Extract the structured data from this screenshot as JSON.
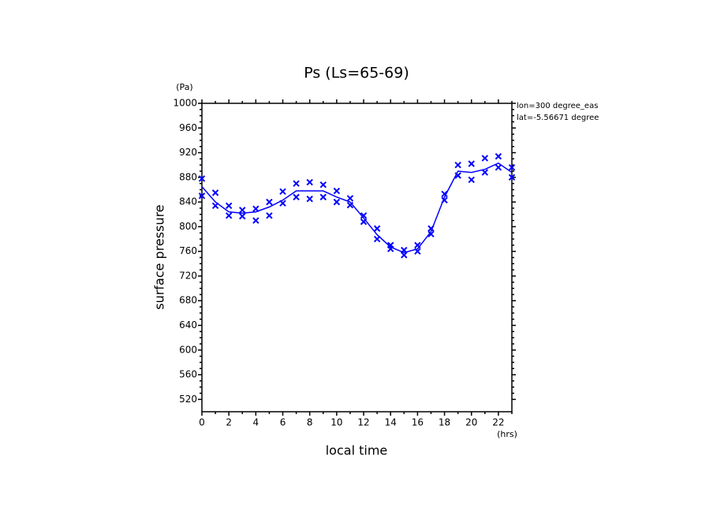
{
  "chart_data": {
    "type": "line",
    "title": "Ps (Ls=65-69)",
    "y_unit": "(Pa)",
    "x_unit": "(hrs)",
    "y_label": "surface pressure",
    "x_label": "local time",
    "annotations": [
      "lon=300 degree_eas",
      "lat=-5.56671 degree"
    ],
    "color": "#0000ff",
    "xlim": [
      0,
      23
    ],
    "xticks": [
      0,
      2,
      4,
      6,
      8,
      10,
      12,
      14,
      16,
      18,
      20,
      22
    ],
    "ylim": [
      500,
      1000
    ],
    "yticks": [
      520,
      560,
      600,
      640,
      680,
      720,
      760,
      800,
      840,
      880,
      920,
      960,
      1000
    ],
    "x": [
      0,
      1,
      2,
      3,
      4,
      5,
      6,
      7,
      8,
      9,
      10,
      11,
      12,
      13,
      14,
      15,
      16,
      17,
      18,
      19,
      20,
      21,
      22,
      23
    ],
    "values": [
      865,
      840,
      824,
      822,
      824,
      832,
      843,
      858,
      858,
      858,
      848,
      840,
      814,
      787,
      767,
      758,
      764,
      792,
      848,
      890,
      888,
      893,
      903,
      888
    ],
    "samples": {
      "x": [
        0,
        0,
        1,
        1,
        2,
        2,
        3,
        3,
        4,
        4,
        5,
        5,
        6,
        6,
        7,
        7,
        8,
        8,
        9,
        9,
        10,
        10,
        11,
        11,
        12,
        12,
        13,
        13,
        14,
        14,
        15,
        15,
        16,
        16,
        17,
        17,
        18,
        18,
        19,
        19,
        20,
        20,
        21,
        21,
        22,
        22,
        23,
        23
      ],
      "values": [
        850,
        878,
        834,
        855,
        818,
        834,
        817,
        827,
        810,
        829,
        818,
        840,
        838,
        857,
        848,
        870,
        845,
        872,
        848,
        868,
        840,
        858,
        835,
        846,
        808,
        818,
        780,
        797,
        764,
        770,
        754,
        762,
        760,
        770,
        788,
        797,
        843,
        853,
        883,
        900,
        876,
        902,
        888,
        911,
        896,
        914,
        880,
        896
      ]
    }
  }
}
